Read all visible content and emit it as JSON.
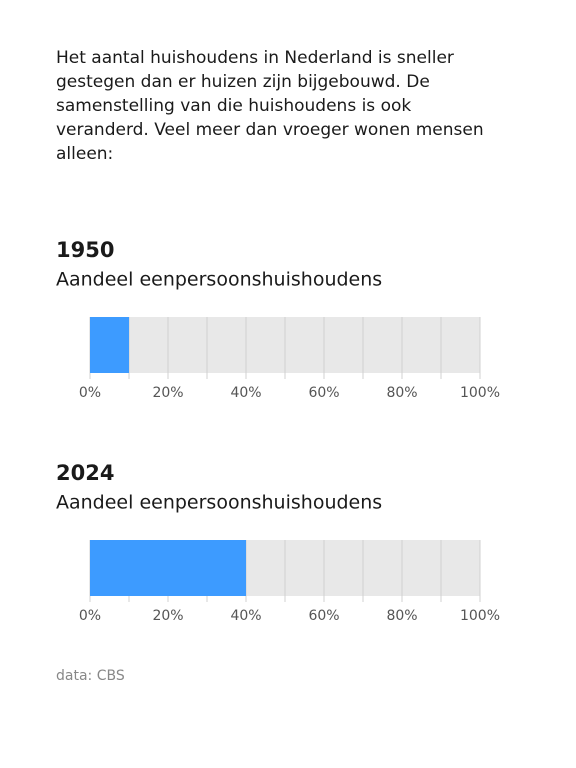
{
  "intro": "Het aantal huishoudens in Nederland is sneller gestegen dan er huizen zijn bijgebouwd. De samenstelling van die huishoudens is ook veranderd. Veel meer dan vroeger wonen mensen alleen:",
  "chart_data": [
    {
      "type": "bar",
      "orientation": "horizontal",
      "title": "1950",
      "subtitle": "Aandeel eenpersoonshuishoudens",
      "values": [
        10
      ],
      "color": "#3d9bff",
      "track_color": "#e8e8e8",
      "xlim": [
        0,
        100
      ],
      "xticks": [
        {
          "value": 0,
          "label": "0%"
        },
        {
          "value": 20,
          "label": "20%"
        },
        {
          "value": 40,
          "label": "40%"
        },
        {
          "value": 60,
          "label": "60%"
        },
        {
          "value": 80,
          "label": "80%"
        },
        {
          "value": 100,
          "label": "100%"
        }
      ],
      "minor_xticks": [
        10,
        30,
        50,
        70,
        90
      ],
      "grid": true
    },
    {
      "type": "bar",
      "orientation": "horizontal",
      "title": "2024",
      "subtitle": "Aandeel eenpersoonshuishoudens",
      "values": [
        40
      ],
      "color": "#3d9bff",
      "track_color": "#e8e8e8",
      "xlim": [
        0,
        100
      ],
      "xticks": [
        {
          "value": 0,
          "label": "0%"
        },
        {
          "value": 20,
          "label": "20%"
        },
        {
          "value": 40,
          "label": "40%"
        },
        {
          "value": 60,
          "label": "60%"
        },
        {
          "value": 80,
          "label": "80%"
        },
        {
          "value": 100,
          "label": "100%"
        }
      ],
      "minor_xticks": [
        10,
        30,
        50,
        70,
        90
      ],
      "grid": true
    }
  ],
  "source": "data: CBS"
}
